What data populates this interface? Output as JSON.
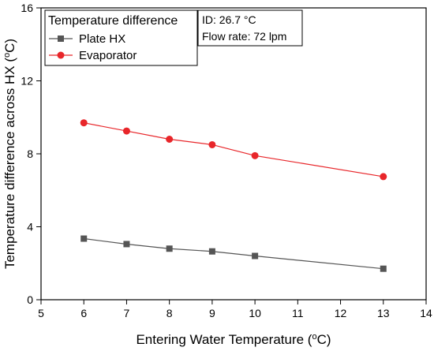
{
  "chart_data": {
    "type": "line",
    "xlabel_main": "Entering Water Temperature (",
    "xlabel_sup": "o",
    "xlabel_end": "C)",
    "ylabel_main": "Temperature difference across HX (",
    "ylabel_sup": "o",
    "ylabel_end": "C)",
    "xlim": [
      5,
      14
    ],
    "ylim": [
      0,
      16
    ],
    "x_ticks": [
      5,
      6,
      7,
      8,
      9,
      10,
      11,
      12,
      13,
      14
    ],
    "y_ticks": [
      0,
      4,
      8,
      12,
      16
    ],
    "legend": {
      "title": "Temperature difference",
      "placement": "top-left"
    },
    "annotations": {
      "id_line": "ID: 26.7 °C",
      "flow_line": "Flow rate: 72 lpm"
    },
    "series": [
      {
        "name": "Plate HX",
        "color": "#555555",
        "marker": "square",
        "x": [
          6,
          7,
          8,
          9,
          10,
          13
        ],
        "y": [
          3.35,
          3.05,
          2.8,
          2.65,
          2.4,
          1.7
        ]
      },
      {
        "name": "Evaporator",
        "color": "#e8262a",
        "marker": "circle",
        "x": [
          6,
          7,
          8,
          9,
          10,
          13
        ],
        "y": [
          9.7,
          9.25,
          8.8,
          8.5,
          7.9,
          6.75
        ]
      }
    ],
    "grid": false
  }
}
